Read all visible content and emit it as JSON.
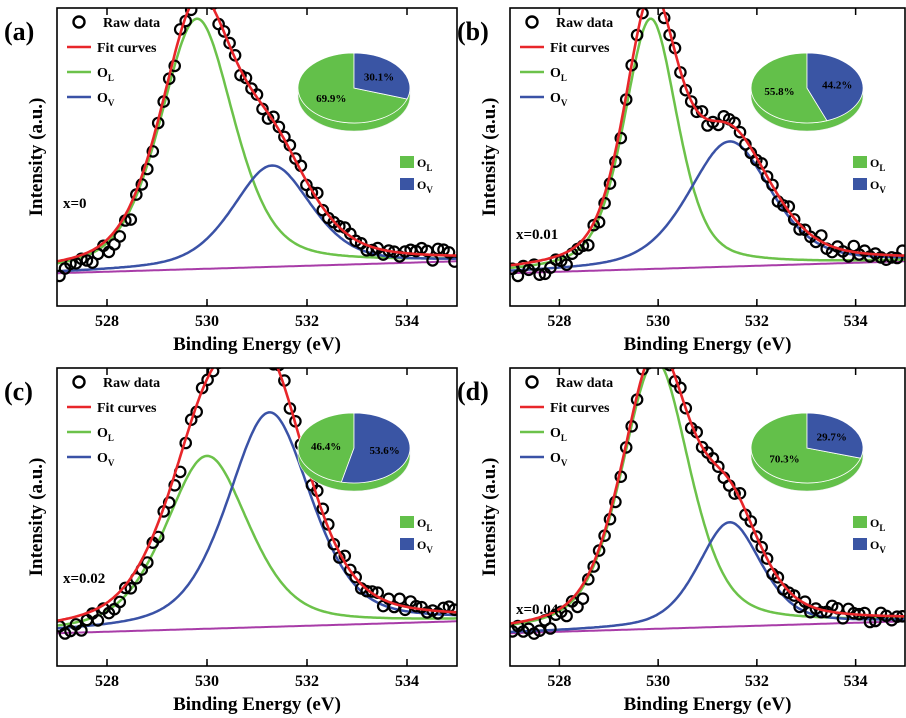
{
  "colors": {
    "raw": "#000000",
    "fit": "#e8262a",
    "ol": "#6cc24a",
    "ov": "#3a52a6",
    "baseline": "#a83ca8",
    "pie_ol": "#63c04a",
    "pie_ov": "#3a55a4"
  },
  "chart_data": [
    {
      "type": "line",
      "panel": "(a)",
      "sample_label": "x=0",
      "xlabel": "Binding Energy (eV)",
      "ylabel": "Intensity (a.u.)",
      "xlim": [
        527,
        535
      ],
      "xticks": [
        "528",
        "530",
        "532",
        "534"
      ],
      "legend": [
        "Raw data",
        "Fit curves",
        "O_L",
        "O_V"
      ],
      "peaks": {
        "ol": {
          "center": 529.8,
          "height": 0.84,
          "width": 0.75
        },
        "ov": {
          "center": 531.3,
          "height": 0.34,
          "width": 0.8
        }
      },
      "pie": {
        "slices": [
          {
            "label": "O_L",
            "value": 69.9,
            "text": "69.9%"
          },
          {
            "label": "O_V",
            "value": 30.1,
            "text": "30.1%"
          }
        ]
      }
    },
    {
      "type": "line",
      "panel": "(b)",
      "sample_label": "x=0.01",
      "xlabel": "Binding Energy (eV)",
      "ylabel": "Intensity (a.u.)",
      "xlim": [
        527,
        535
      ],
      "xticks": [
        "528",
        "530",
        "532",
        "534"
      ],
      "legend": [
        "Raw data",
        "Fit curves",
        "O_L",
        "O_V"
      ],
      "peaks": {
        "ol": {
          "center": 529.85,
          "height": 0.84,
          "width": 0.55
        },
        "ov": {
          "center": 531.45,
          "height": 0.42,
          "width": 0.85
        }
      },
      "pie": {
        "slices": [
          {
            "label": "O_L",
            "value": 55.8,
            "text": "55.8%"
          },
          {
            "label": "O_V",
            "value": 44.2,
            "text": "44.2%"
          }
        ]
      }
    },
    {
      "type": "line",
      "panel": "(c)",
      "sample_label": "x=0.02",
      "xlabel": "Binding Energy (eV)",
      "ylabel": "Intensity (a.u.)",
      "xlim": [
        527,
        535
      ],
      "xticks": [
        "528",
        "530",
        "532",
        "534"
      ],
      "legend": [
        "Raw data",
        "Fit curves",
        "O_L",
        "O_V"
      ],
      "peaks": {
        "ol": {
          "center": 530.0,
          "height": 0.58,
          "width": 0.85
        },
        "ov": {
          "center": 531.25,
          "height": 0.72,
          "width": 0.85
        }
      },
      "pie": {
        "slices": [
          {
            "label": "O_L",
            "value": 46.4,
            "text": "46.4%"
          },
          {
            "label": "O_V",
            "value": 53.6,
            "text": "53.6%"
          }
        ]
      }
    },
    {
      "type": "line",
      "panel": "(d)",
      "sample_label": "x=0.04",
      "xlabel": "Binding Energy (eV)",
      "ylabel": "Intensity (a.u.)",
      "xlim": [
        527,
        535
      ],
      "xticks": [
        "528",
        "530",
        "532",
        "534"
      ],
      "legend": [
        "Raw data",
        "Fit curves",
        "O_L",
        "O_V"
      ],
      "peaks": {
        "ol": {
          "center": 529.95,
          "height": 0.9,
          "width": 0.7
        },
        "ov": {
          "center": 531.45,
          "height": 0.35,
          "width": 0.65
        }
      },
      "pie": {
        "slices": [
          {
            "label": "O_L",
            "value": 70.3,
            "text": "70.3%"
          },
          {
            "label": "O_V",
            "value": 29.7,
            "text": "29.7%"
          }
        ]
      }
    }
  ]
}
